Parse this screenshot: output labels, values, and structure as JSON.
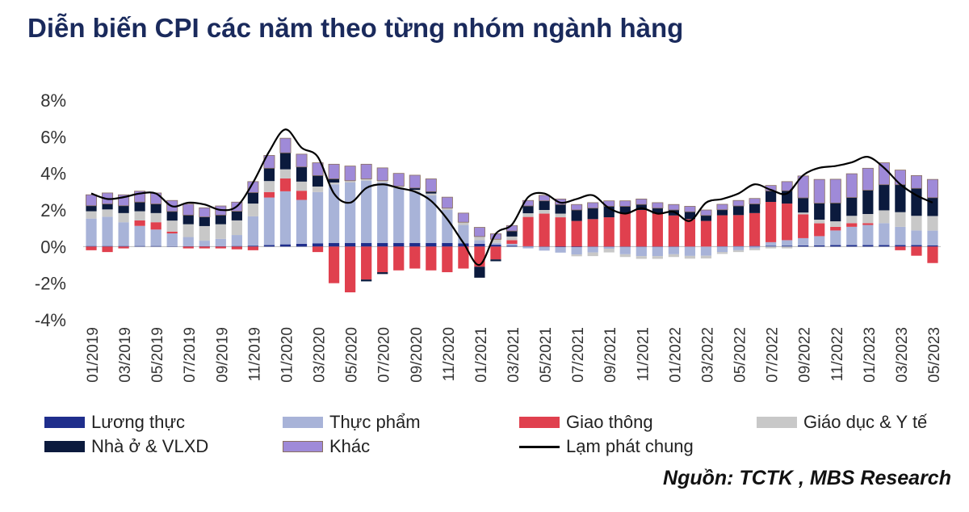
{
  "title": "Diễn biến CPI các năm theo từng nhóm ngành hàng",
  "source": "Nguồn: TCTK , MBS Research",
  "chart_data": {
    "type": "bar",
    "stacked": true,
    "title": "Diễn biến CPI các năm theo từng nhóm ngành hàng",
    "ylim": [
      -4,
      8
    ],
    "yticks": [
      "-4%",
      "-2%",
      "0%",
      "2%",
      "4%",
      "6%",
      "8%"
    ],
    "yticks_values": [
      -4,
      -2,
      0,
      2,
      4,
      6,
      8
    ],
    "xtick_labels": [
      "01/2019",
      "03/2019",
      "05/2019",
      "07/2019",
      "09/2019",
      "11/2019",
      "01/2020",
      "03/2020",
      "05/2020",
      "07/2020",
      "09/2020",
      "11/2020",
      "01/2021",
      "03/2021",
      "05/2021",
      "07/2021",
      "09/2021",
      "11/2021",
      "01/2022",
      "03/2022",
      "05/2022",
      "07/2022",
      "09/2022",
      "11/2022",
      "01/2023",
      "03/2023",
      "05/2023"
    ],
    "categories": [
      "01/2019",
      "02/2019",
      "03/2019",
      "04/2019",
      "05/2019",
      "06/2019",
      "07/2019",
      "08/2019",
      "09/2019",
      "10/2019",
      "11/2019",
      "12/2019",
      "01/2020",
      "02/2020",
      "03/2020",
      "04/2020",
      "05/2020",
      "06/2020",
      "07/2020",
      "08/2020",
      "09/2020",
      "10/2020",
      "11/2020",
      "12/2020",
      "01/2021",
      "02/2021",
      "03/2021",
      "04/2021",
      "05/2021",
      "06/2021",
      "07/2021",
      "08/2021",
      "09/2021",
      "10/2021",
      "11/2021",
      "12/2021",
      "01/2022",
      "02/2022",
      "03/2022",
      "04/2022",
      "05/2022",
      "06/2022",
      "07/2022",
      "08/2022",
      "09/2022",
      "10/2022",
      "11/2022",
      "12/2022",
      "01/2023",
      "02/2023",
      "03/2023",
      "04/2023",
      "05/2023"
    ],
    "legend": "bottom",
    "series": [
      {
        "name": "Lương thực",
        "color": "#1f2e8c",
        "values": [
          0.03,
          0.03,
          0.03,
          0.03,
          0.03,
          0.02,
          0.02,
          0.02,
          0.02,
          0.03,
          0.05,
          0.08,
          0.12,
          0.15,
          0.18,
          0.2,
          0.2,
          0.2,
          0.2,
          0.2,
          0.2,
          0.2,
          0.2,
          0.18,
          0.15,
          0.1,
          0.05,
          0.02,
          -0.02,
          -0.03,
          -0.03,
          -0.02,
          -0.02,
          -0.02,
          -0.02,
          -0.02,
          -0.02,
          -0.01,
          0,
          0.01,
          0.02,
          0.03,
          0.04,
          0.05,
          0.06,
          0.07,
          0.08,
          0.08,
          0.08,
          0.08,
          0.08,
          0.08,
          0.07
        ]
      },
      {
        "name": "Thực phẩm",
        "color": "#a8b3d8",
        "values": [
          1.5,
          1.6,
          1.3,
          1.1,
          0.9,
          0.7,
          0.5,
          0.3,
          0.4,
          0.6,
          1.6,
          2.6,
          2.9,
          2.4,
          2.8,
          3.2,
          3.3,
          3.4,
          3.3,
          3.0,
          2.8,
          2.6,
          1.8,
          1.0,
          0.2,
          0.1,
          0.1,
          -0.1,
          -0.2,
          -0.3,
          -0.4,
          -0.3,
          -0.1,
          -0.4,
          -0.5,
          -0.5,
          -0.4,
          -0.5,
          -0.5,
          -0.3,
          -0.2,
          -0.1,
          0.2,
          0.3,
          0.4,
          0.5,
          0.8,
          1.0,
          1.1,
          1.2,
          1.0,
          0.8,
          0.8
        ]
      },
      {
        "name": "Giao thông",
        "color": "#e0404e",
        "values": [
          -0.2,
          -0.3,
          -0.1,
          0.3,
          0.4,
          0.1,
          -0.1,
          -0.1,
          -0.1,
          -0.15,
          -0.2,
          0.3,
          0.7,
          0.5,
          -0.3,
          -2.0,
          -2.5,
          -1.8,
          -1.4,
          -1.3,
          -1.2,
          -1.3,
          -1.4,
          -1.2,
          -1.1,
          -0.7,
          0.2,
          1.6,
          1.8,
          1.6,
          1.4,
          1.5,
          1.6,
          1.8,
          2.0,
          1.8,
          1.7,
          1.5,
          1.4,
          1.7,
          1.7,
          1.8,
          2.2,
          2.0,
          1.3,
          0.7,
          0.2,
          0.2,
          0.1,
          0.0,
          -0.2,
          -0.5,
          -0.9
        ]
      },
      {
        "name": "Giáo dục & Y tế",
        "color": "#c8c8c8",
        "values": [
          0.4,
          0.4,
          0.5,
          0.5,
          0.5,
          0.6,
          0.7,
          0.8,
          0.8,
          0.8,
          0.7,
          0.6,
          0.5,
          0.5,
          0.3,
          0.1,
          0.1,
          0.1,
          0.1,
          0.1,
          0.1,
          0.1,
          0.1,
          0.15,
          0.2,
          0.2,
          0.2,
          0.2,
          0.2,
          0.2,
          -0.1,
          -0.2,
          -0.2,
          -0.15,
          -0.15,
          -0.15,
          -0.15,
          -0.15,
          -0.15,
          -0.1,
          -0.1,
          -0.1,
          -0.1,
          -0.1,
          0.1,
          0.2,
          0.3,
          0.4,
          0.5,
          0.7,
          0.8,
          0.8,
          0.8
        ]
      },
      {
        "name": "Nhà ở & VLXD",
        "color": "#0b1a3d",
        "values": [
          0.3,
          0.3,
          0.4,
          0.5,
          0.5,
          0.5,
          0.5,
          0.5,
          0.5,
          0.5,
          0.6,
          0.7,
          0.9,
          0.8,
          0.6,
          0.2,
          0.0,
          -0.1,
          -0.1,
          0.0,
          0.1,
          0.1,
          0.0,
          0.0,
          -0.6,
          -0.1,
          0.3,
          0.4,
          0.5,
          0.5,
          0.6,
          0.6,
          0.6,
          0.4,
          0.3,
          0.3,
          0.3,
          0.4,
          0.3,
          0.3,
          0.5,
          0.5,
          0.6,
          0.7,
          0.8,
          0.9,
          1.0,
          1.0,
          1.3,
          1.4,
          1.5,
          1.5,
          1.0
        ]
      },
      {
        "name": "Khác",
        "color": "#9f8ad8",
        "values": [
          0.6,
          0.6,
          0.6,
          0.6,
          0.6,
          0.6,
          0.6,
          0.5,
          0.5,
          0.5,
          0.6,
          0.7,
          0.8,
          0.7,
          0.7,
          0.8,
          0.8,
          0.8,
          0.7,
          0.7,
          0.7,
          0.7,
          0.6,
          0.5,
          0.5,
          0.3,
          0.3,
          0.3,
          0.3,
          0.3,
          0.3,
          0.3,
          0.3,
          0.3,
          0.3,
          0.3,
          0.3,
          0.3,
          0.3,
          0.3,
          0.3,
          0.3,
          0.3,
          0.5,
          1.2,
          1.3,
          1.3,
          1.3,
          1.2,
          1.2,
          0.8,
          0.7,
          1.0
        ]
      },
      {
        "name": "Lạm phát chung",
        "color": "#000000",
        "type": "line",
        "values": [
          2.9,
          2.6,
          2.7,
          2.9,
          2.9,
          2.2,
          2.4,
          2.3,
          2.0,
          2.2,
          3.5,
          5.2,
          6.4,
          5.4,
          4.9,
          2.9,
          2.4,
          3.2,
          3.4,
          3.2,
          3.0,
          2.5,
          1.5,
          0.2,
          -1.0,
          0.7,
          1.2,
          2.7,
          2.9,
          2.4,
          2.6,
          2.8,
          2.1,
          1.8,
          2.1,
          1.8,
          1.9,
          1.4,
          2.4,
          2.6,
          2.9,
          3.4,
          3.1,
          2.9,
          3.9,
          4.3,
          4.4,
          4.6,
          4.9,
          4.3,
          3.4,
          2.8,
          2.4
        ]
      }
    ]
  }
}
